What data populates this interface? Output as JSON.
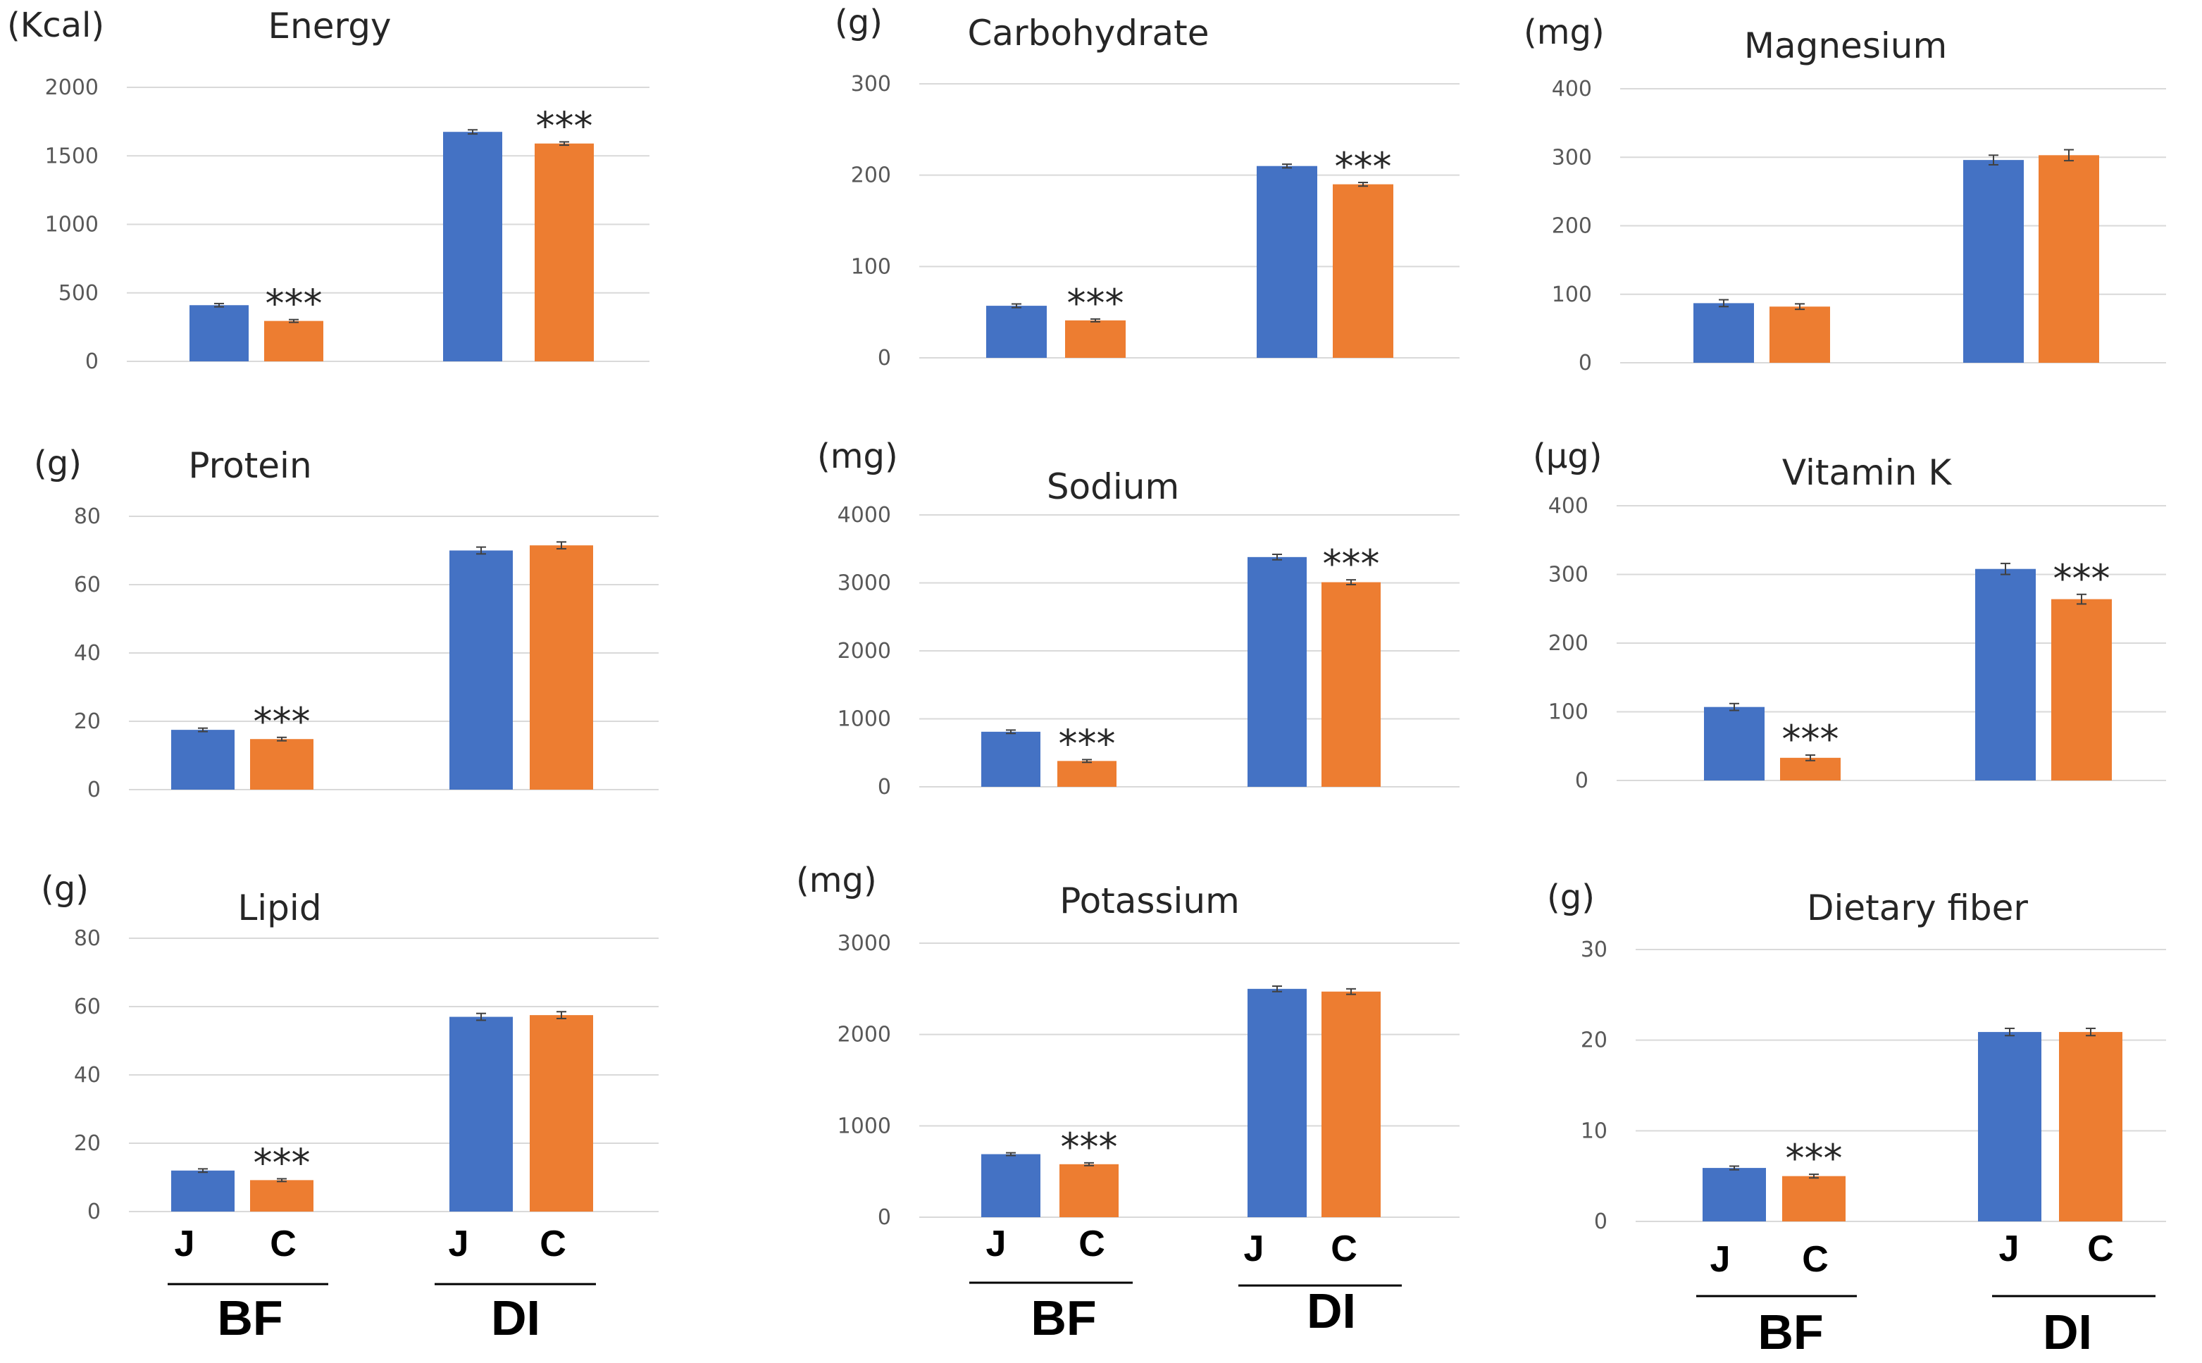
{
  "colors": {
    "J": "#4472C4",
    "C": "#ED7D31",
    "grid": "#D9D9D9",
    "error": "#404040"
  },
  "bottom_labels": {
    "J": "J",
    "C": "C",
    "BF": "BF",
    "DI": "DI"
  },
  "chart_data": [
    {
      "type": "bar",
      "title": "Energy",
      "unit": "(Kcal)",
      "categories": [
        "BF",
        "DI"
      ],
      "series": [
        {
          "name": "J",
          "values": [
            410,
            1675
          ],
          "errors": [
            12,
            15
          ]
        },
        {
          "name": "C",
          "values": [
            295,
            1590
          ],
          "errors": [
            10,
            12
          ]
        }
      ],
      "significance": [
        "***",
        "***"
      ],
      "yticks": [
        0,
        500,
        1000,
        1500,
        2000
      ],
      "ylim": [
        0,
        2000
      ]
    },
    {
      "type": "bar",
      "title": "Carbohydrate",
      "unit": "(g)",
      "categories": [
        "BF",
        "DI"
      ],
      "series": [
        {
          "name": "J",
          "values": [
            57,
            210
          ],
          "errors": [
            2,
            2
          ]
        },
        {
          "name": "C",
          "values": [
            41,
            190
          ],
          "errors": [
            1.5,
            2
          ]
        }
      ],
      "significance": [
        "***",
        "***"
      ],
      "yticks": [
        0,
        100,
        200,
        300
      ],
      "ylim": [
        0,
        300
      ]
    },
    {
      "type": "bar",
      "title": "Magnesium",
      "unit": "(mg)",
      "categories": [
        "BF",
        "DI"
      ],
      "series": [
        {
          "name": "J",
          "values": [
            87,
            296
          ],
          "errors": [
            5,
            7
          ]
        },
        {
          "name": "C",
          "values": [
            82,
            303
          ],
          "errors": [
            4,
            8
          ]
        }
      ],
      "significance": [
        "",
        ""
      ],
      "yticks": [
        0,
        100,
        200,
        300,
        400
      ],
      "ylim": [
        0,
        400
      ]
    },
    {
      "type": "bar",
      "title": "Protein",
      "unit": "(g)",
      "categories": [
        "BF",
        "DI"
      ],
      "series": [
        {
          "name": "J",
          "values": [
            17.5,
            70
          ],
          "errors": [
            0.5,
            1
          ]
        },
        {
          "name": "C",
          "values": [
            14.8,
            71.5
          ],
          "errors": [
            0.5,
            1
          ]
        }
      ],
      "significance": [
        "***",
        ""
      ],
      "yticks": [
        0,
        20,
        40,
        60,
        80
      ],
      "ylim": [
        0,
        80
      ]
    },
    {
      "type": "bar",
      "title": "Sodium",
      "unit": "(mg)",
      "categories": [
        "BF",
        "DI"
      ],
      "series": [
        {
          "name": "J",
          "values": [
            810,
            3380
          ],
          "errors": [
            25,
            40
          ]
        },
        {
          "name": "C",
          "values": [
            380,
            3010
          ],
          "errors": [
            20,
            35
          ]
        }
      ],
      "significance": [
        "***",
        "***"
      ],
      "yticks": [
        0,
        1000,
        2000,
        3000,
        4000
      ],
      "ylim": [
        0,
        4000
      ]
    },
    {
      "type": "bar",
      "title": "Vitamin K",
      "unit": "(μg)",
      "categories": [
        "BF",
        "DI"
      ],
      "series": [
        {
          "name": "J",
          "values": [
            107,
            308
          ],
          "errors": [
            5,
            8
          ]
        },
        {
          "name": "C",
          "values": [
            33,
            264
          ],
          "errors": [
            4,
            7
          ]
        }
      ],
      "significance": [
        "***",
        "***"
      ],
      "yticks": [
        0,
        100,
        200,
        300,
        400
      ],
      "ylim": [
        0,
        400
      ]
    },
    {
      "type": "bar",
      "title": "Lipid",
      "unit": "(g)",
      "categories": [
        "BF",
        "DI"
      ],
      "series": [
        {
          "name": "J",
          "values": [
            12,
            57
          ],
          "errors": [
            0.5,
            1
          ]
        },
        {
          "name": "C",
          "values": [
            9.2,
            57.5
          ],
          "errors": [
            0.4,
            1
          ]
        }
      ],
      "significance": [
        "***",
        ""
      ],
      "yticks": [
        0,
        20,
        40,
        60,
        80
      ],
      "ylim": [
        0,
        80
      ]
    },
    {
      "type": "bar",
      "title": "Potassium",
      "unit": "(mg)",
      "categories": [
        "BF",
        "DI"
      ],
      "series": [
        {
          "name": "J",
          "values": [
            690,
            2500
          ],
          "errors": [
            15,
            30
          ]
        },
        {
          "name": "C",
          "values": [
            580,
            2470
          ],
          "errors": [
            15,
            30
          ]
        }
      ],
      "significance": [
        "***",
        ""
      ],
      "yticks": [
        0,
        1000,
        2000,
        3000
      ],
      "ylim": [
        0,
        3000
      ]
    },
    {
      "type": "bar",
      "title": "Dietary fiber",
      "unit": "(g)",
      "categories": [
        "BF",
        "DI"
      ],
      "series": [
        {
          "name": "J",
          "values": [
            5.9,
            20.9
          ],
          "errors": [
            0.2,
            0.4
          ]
        },
        {
          "name": "C",
          "values": [
            5.0,
            20.9
          ],
          "errors": [
            0.2,
            0.4
          ]
        }
      ],
      "significance": [
        "***",
        ""
      ],
      "yticks": [
        0,
        10,
        20,
        30
      ],
      "ylim": [
        0,
        30
      ]
    }
  ]
}
